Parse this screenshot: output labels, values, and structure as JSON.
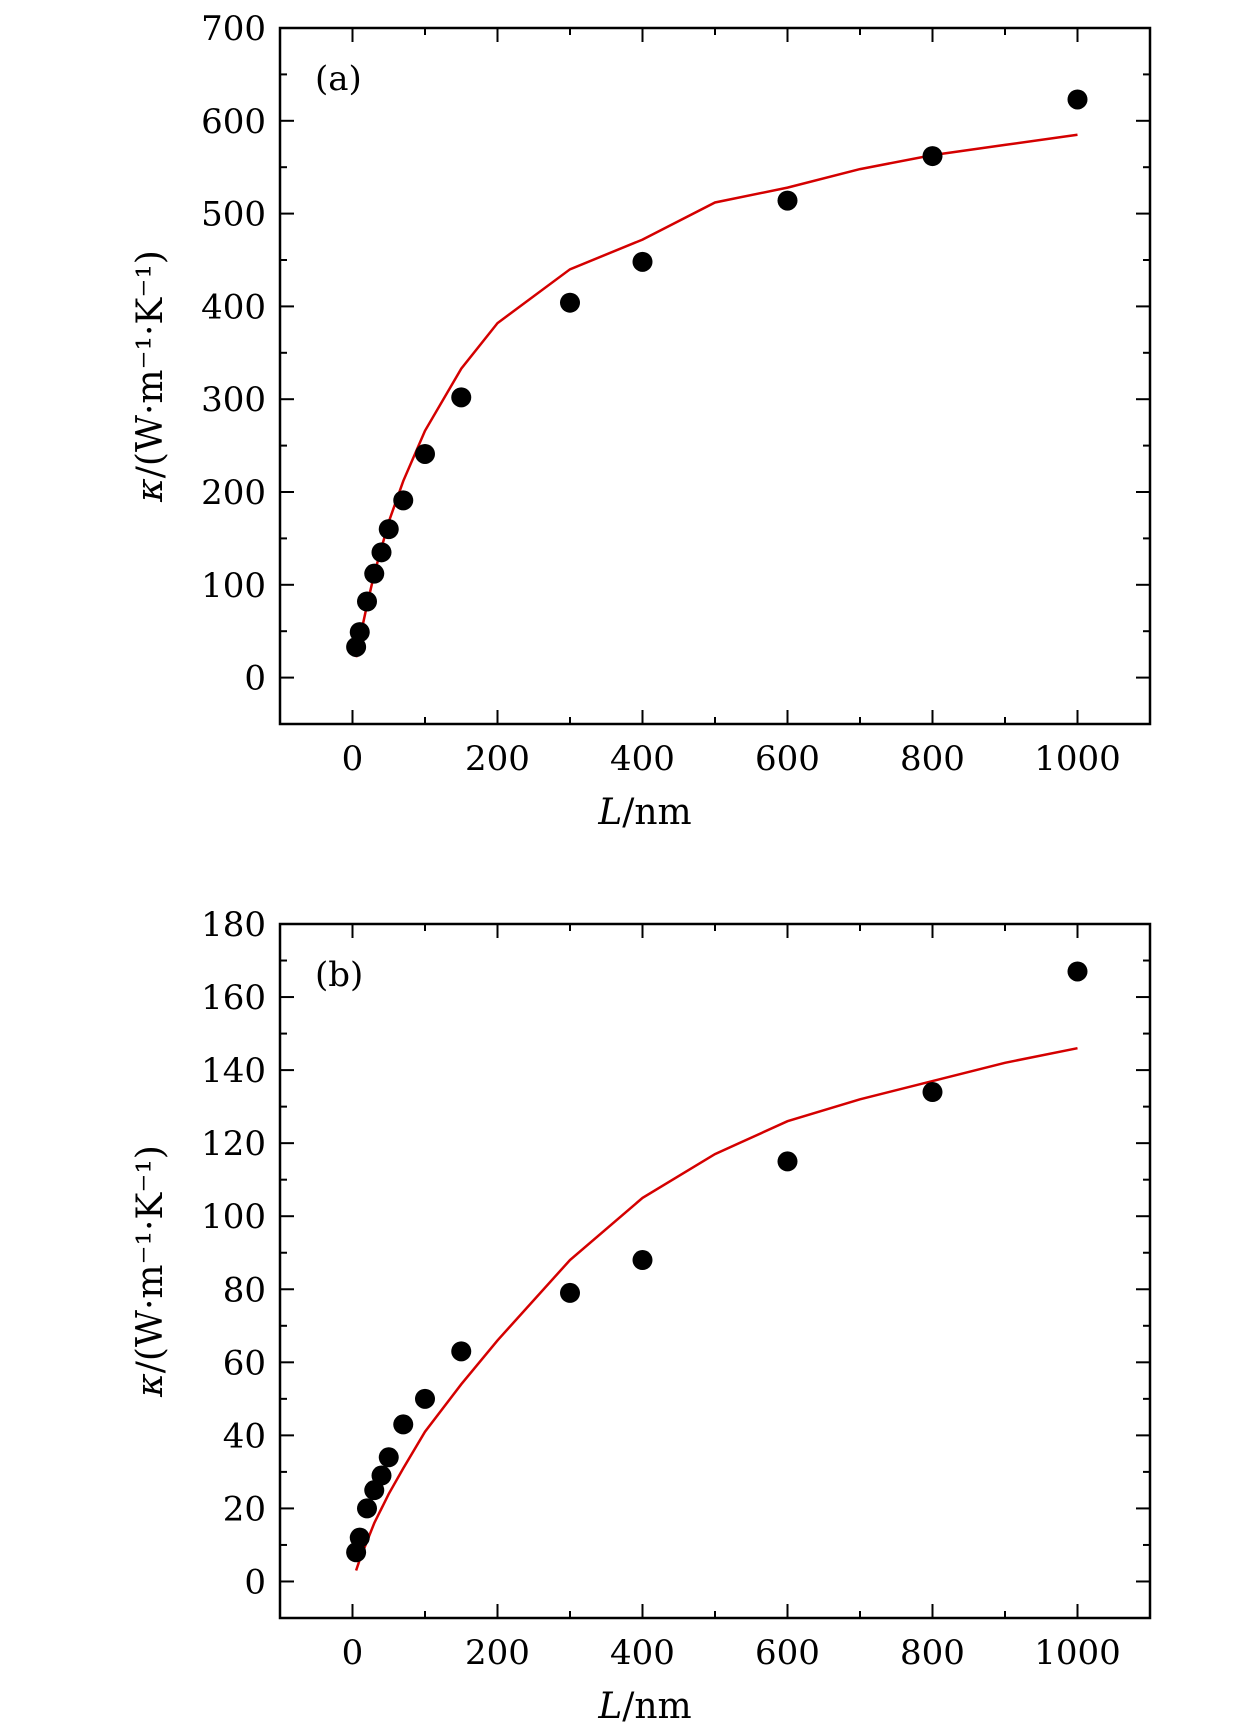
{
  "chart_data": [
    {
      "type": "scatter",
      "panel_label": "(a)",
      "xlabel_var": "L",
      "xlabel_unit": "/nm",
      "ylabel_var": "κ",
      "ylabel_unit": "/(W·m⁻¹·K⁻¹)",
      "xlim": [
        -100,
        1100
      ],
      "ylim": [
        -50,
        700
      ],
      "x_ticks": [
        0,
        200,
        400,
        600,
        800,
        1000
      ],
      "y_ticks": [
        0,
        100,
        200,
        300,
        400,
        500,
        600,
        700
      ],
      "x_tick_labels": [
        "0",
        "200",
        "400",
        "600",
        "800",
        "1000"
      ],
      "y_tick_labels": [
        "0",
        "100",
        "200",
        "300",
        "400",
        "500",
        "600",
        "700"
      ],
      "points": {
        "x": [
          5,
          10,
          20,
          30,
          40,
          50,
          70,
          100,
          150,
          300,
          400,
          600,
          800,
          1000
        ],
        "y": [
          33,
          49,
          82,
          112,
          135,
          160,
          191,
          241,
          302,
          404,
          448,
          514,
          562,
          623
        ]
      },
      "fit_curve": {
        "x": [
          5,
          10,
          20,
          30,
          50,
          70,
          100,
          150,
          200,
          300,
          400,
          500,
          600,
          700,
          800,
          900,
          1000
        ],
        "y": [
          22,
          42,
          78,
          112,
          168,
          212,
          266,
          333,
          382,
          440,
          472,
          512,
          528,
          548,
          563,
          574,
          585
        ]
      },
      "colors": {
        "points": "#000000",
        "fit_curve": "#d40000"
      }
    },
    {
      "type": "scatter",
      "panel_label": "(b)",
      "xlabel_var": "L",
      "xlabel_unit": "/nm",
      "ylabel_var": "κ",
      "ylabel_unit": "/(W·m⁻¹·K⁻¹)",
      "xlim": [
        -100,
        1100
      ],
      "ylim": [
        -10,
        180
      ],
      "x_ticks": [
        0,
        200,
        400,
        600,
        800,
        1000
      ],
      "y_ticks": [
        0,
        20,
        40,
        60,
        80,
        100,
        120,
        140,
        160,
        180
      ],
      "x_tick_labels": [
        "0",
        "200",
        "400",
        "600",
        "800",
        "1000"
      ],
      "y_tick_labels": [
        "0",
        "20",
        "40",
        "60",
        "80",
        "100",
        "120",
        "140",
        "160",
        "180"
      ],
      "points": {
        "x": [
          5,
          10,
          20,
          30,
          40,
          50,
          70,
          100,
          150,
          300,
          400,
          600,
          800,
          1000
        ],
        "y": [
          8,
          12,
          20,
          25,
          29,
          34,
          43,
          50,
          63,
          79,
          88,
          115,
          134,
          167
        ]
      },
      "fit_curve": {
        "x": [
          5,
          10,
          20,
          30,
          50,
          70,
          100,
          150,
          200,
          300,
          400,
          500,
          600,
          700,
          800,
          900,
          1000
        ],
        "y": [
          3,
          6,
          11,
          16,
          24,
          31,
          41,
          54,
          66,
          88,
          105,
          117,
          126,
          132,
          137,
          142,
          146
        ]
      },
      "colors": {
        "points": "#000000",
        "fit_curve": "#d40000"
      }
    }
  ]
}
